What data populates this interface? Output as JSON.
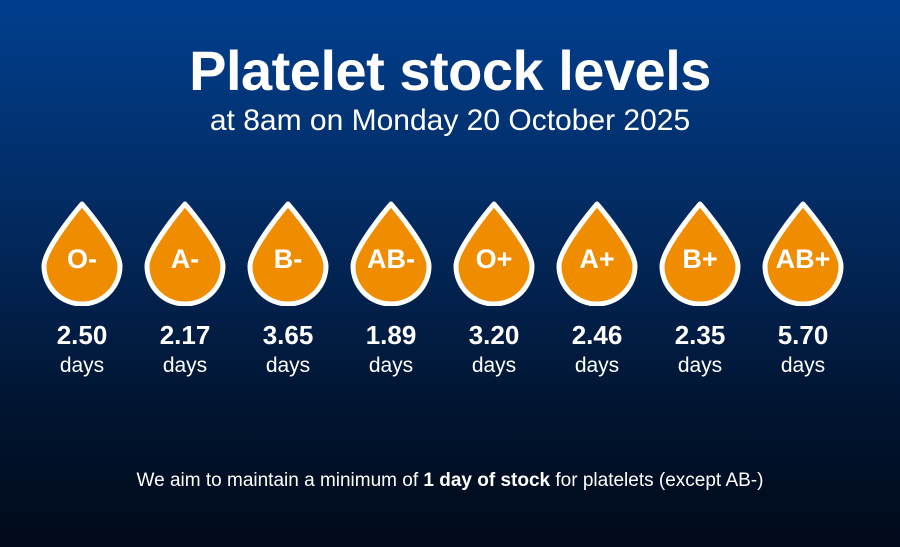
{
  "header": {
    "title": "Platelet stock levels",
    "subtitle": "at 8am on Monday 20 October 2025"
  },
  "drop_style": {
    "fill": "#f08c00",
    "outline": "#ffffff",
    "icon": "blood-drop-icon"
  },
  "stock": [
    {
      "group": "O-",
      "value": "2.50",
      "unit": "days"
    },
    {
      "group": "A-",
      "value": "2.17",
      "unit": "days"
    },
    {
      "group": "B-",
      "value": "3.65",
      "unit": "days"
    },
    {
      "group": "AB-",
      "value": "1.89",
      "unit": "days"
    },
    {
      "group": "O+",
      "value": "3.20",
      "unit": "days"
    },
    {
      "group": "A+",
      "value": "2.46",
      "unit": "days"
    },
    {
      "group": "B+",
      "value": "2.35",
      "unit": "days"
    },
    {
      "group": "AB+",
      "value": "5.70",
      "unit": "days"
    }
  ],
  "footnote": {
    "before": "We aim to maintain a minimum of ",
    "bold": "1 day of stock",
    "after": " for platelets (except AB-)"
  }
}
